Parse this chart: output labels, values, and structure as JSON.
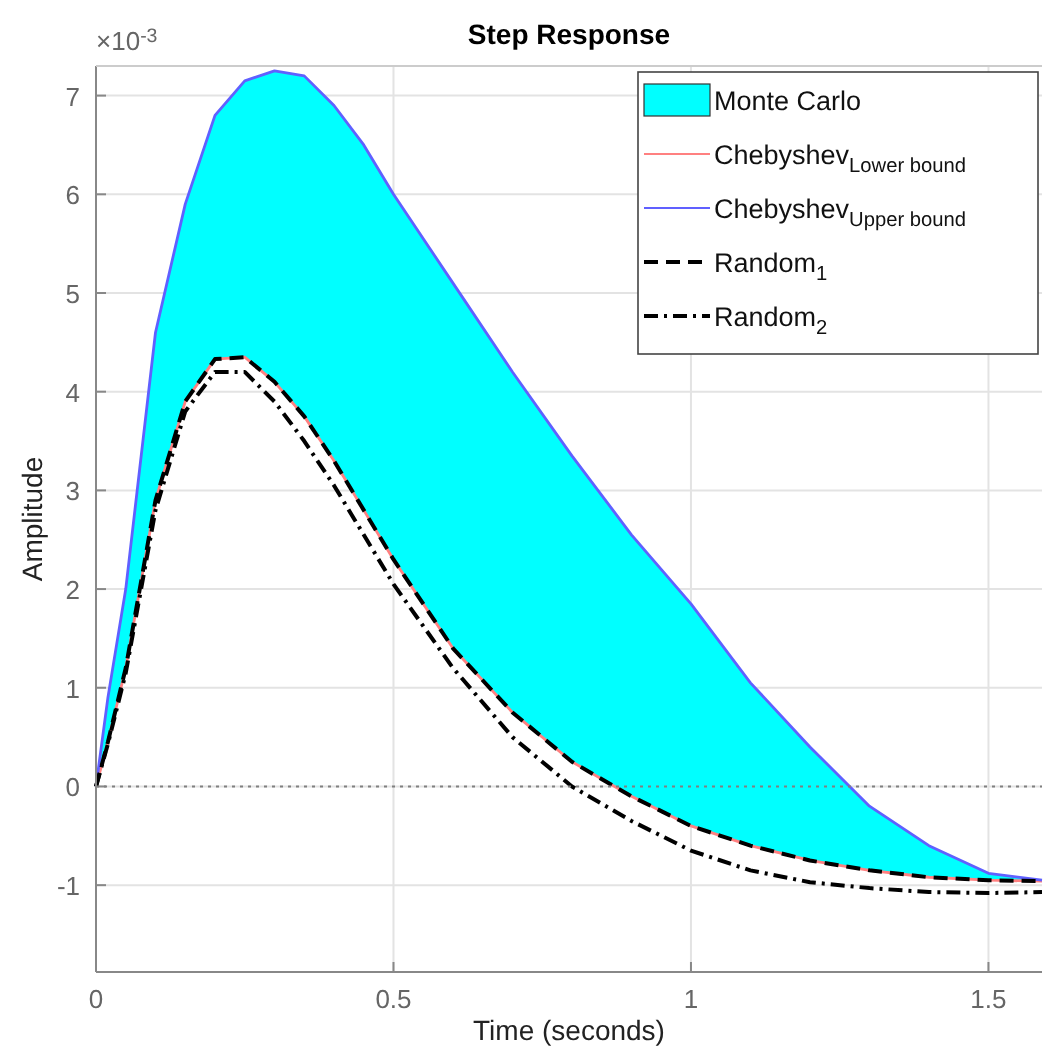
{
  "chart_data": {
    "type": "line",
    "title": "Step Response",
    "xlabel": "Time (seconds)",
    "ylabel": "Amplitude",
    "annotations": [
      "×10$^{-3}$"
    ],
    "x": [
      0,
      0.02,
      0.05,
      0.1,
      0.15,
      0.2,
      0.25,
      0.3,
      0.35,
      0.4,
      0.45,
      0.5,
      0.6,
      0.7,
      0.8,
      0.9,
      1.0,
      1.1,
      1.2,
      1.3,
      1.4,
      1.5,
      1.59
    ],
    "series": [
      {
        "name": "Monte Carlo",
        "type": "area",
        "color": "#00ffff",
        "values": [
          null,
          null,
          null,
          null,
          null,
          null,
          null,
          null,
          null,
          null,
          null,
          null,
          null,
          null,
          null,
          null,
          null,
          null,
          null,
          null,
          null,
          null,
          null
        ],
        "upper": [
          0,
          0.9,
          2.0,
          4.6,
          5.9,
          6.8,
          7.15,
          7.25,
          7.2,
          6.9,
          6.5,
          6.0,
          5.1,
          4.2,
          3.35,
          2.55,
          1.85,
          1.05,
          0.4,
          -0.2,
          -0.6,
          -0.88,
          -0.95
        ],
        "lower": [
          0,
          0.45,
          1.2,
          2.9,
          3.9,
          4.33,
          4.35,
          4.1,
          3.75,
          3.3,
          2.8,
          2.3,
          1.4,
          0.75,
          0.25,
          -0.1,
          -0.4,
          -0.6,
          -0.75,
          -0.85,
          -0.92,
          -0.95,
          -0.96
        ]
      },
      {
        "name": "Chebyshev$_{Lower bound}$",
        "color": "#ff8080",
        "line_style": "solid",
        "values": [
          0,
          0.45,
          1.2,
          2.9,
          3.9,
          4.33,
          4.35,
          4.1,
          3.75,
          3.3,
          2.8,
          2.3,
          1.4,
          0.75,
          0.25,
          -0.1,
          -0.4,
          -0.6,
          -0.75,
          -0.85,
          -0.92,
          -0.95,
          -0.96
        ]
      },
      {
        "name": "Chebyshev$_{Upper bound}$",
        "color": "#6060ff",
        "line_style": "solid",
        "values": [
          0,
          0.9,
          2.0,
          4.6,
          5.9,
          6.8,
          7.15,
          7.25,
          7.2,
          6.9,
          6.5,
          6.0,
          5.1,
          4.2,
          3.35,
          2.55,
          1.85,
          1.05,
          0.4,
          -0.2,
          -0.6,
          -0.88,
          -0.95
        ]
      },
      {
        "name": "Random$_{1}$",
        "color": "#000000",
        "line_style": "dashed",
        "values": [
          0,
          0.45,
          1.2,
          2.9,
          3.9,
          4.33,
          4.35,
          4.1,
          3.75,
          3.3,
          2.8,
          2.3,
          1.4,
          0.75,
          0.25,
          -0.1,
          -0.4,
          -0.6,
          -0.75,
          -0.85,
          -0.92,
          -0.95,
          -0.96
        ]
      },
      {
        "name": "Random$_{2}$",
        "color": "#000000",
        "line_style": "dashdot",
        "values": [
          0,
          0.43,
          1.15,
          2.8,
          3.8,
          4.2,
          4.2,
          3.9,
          3.5,
          3.05,
          2.55,
          2.05,
          1.2,
          0.5,
          0.0,
          -0.35,
          -0.65,
          -0.85,
          -0.97,
          -1.03,
          -1.07,
          -1.08,
          -1.07
        ]
      }
    ],
    "xlim": [
      0,
      1.59
    ],
    "ylim": [
      -1.88,
      7.3
    ],
    "xticks": [
      0,
      0.5,
      1,
      1.5
    ],
    "yticks": [
      -1,
      0,
      1,
      2,
      3,
      4,
      5,
      6,
      7
    ],
    "ref_lines": [
      {
        "axis": "y",
        "value": 0,
        "color": "#808080",
        "line_style": "dotted"
      }
    ],
    "grid": true,
    "legend": "top right",
    "marker": "none"
  }
}
